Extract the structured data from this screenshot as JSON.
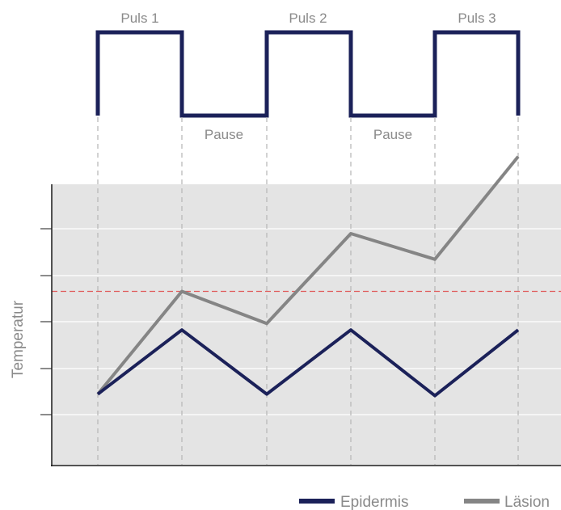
{
  "pulse_labels": [
    "Puls 1",
    "Puls 2",
    "Puls 3"
  ],
  "pause_labels": [
    "Pause",
    "Pause"
  ],
  "chart_data": {
    "type": "line",
    "title": "",
    "xlabel": "",
    "ylabel": "Temperatur",
    "x": [
      0,
      1,
      2,
      3,
      4,
      5
    ],
    "ylim": [
      0,
      10
    ],
    "grid": true,
    "legend_placement": "bottom-right",
    "threshold": {
      "value": 5.3,
      "color": "#e05a5a",
      "style": "dashed"
    },
    "series": [
      {
        "name": "Epidermis",
        "color": "#1b2159",
        "values": [
          2.1,
          4.1,
          2.1,
          4.1,
          2.05,
          4.1
        ]
      },
      {
        "name": "Läsion",
        "color": "#858585",
        "values": [
          2.1,
          5.3,
          4.3,
          7.1,
          6.3,
          9.5
        ]
      }
    ]
  },
  "colors": {
    "pulse": "#1b2159",
    "plot_bg": "#e4e4e4",
    "guide": "#b5b5b5",
    "axis": "#1a1a1a"
  }
}
